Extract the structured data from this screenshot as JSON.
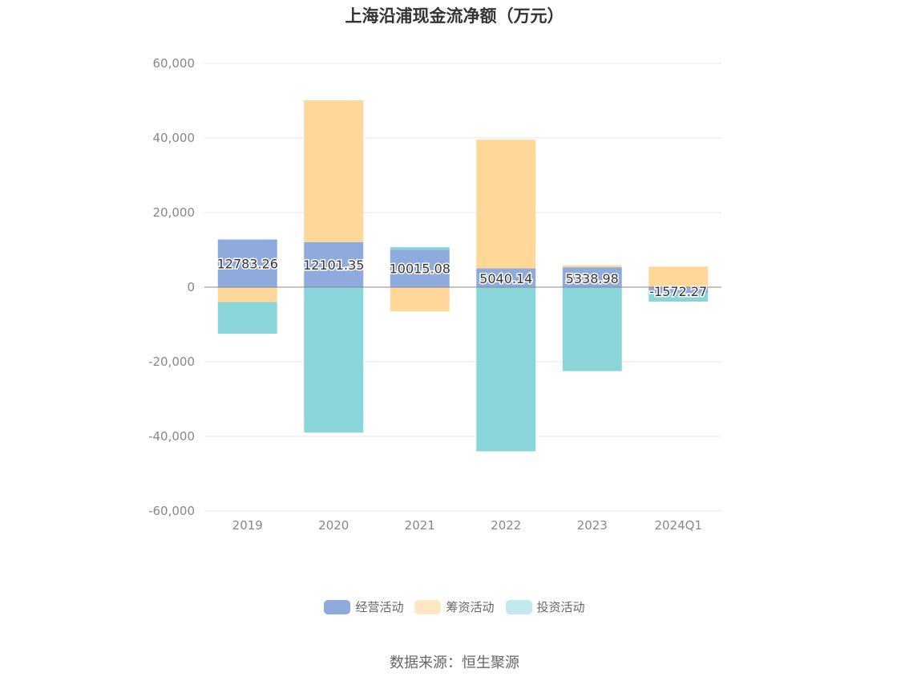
{
  "chart_data": {
    "type": "bar",
    "stacked": true,
    "title": "上海沿浦现金流净额（万元）",
    "categories": [
      "2019",
      "2020",
      "2021",
      "2022",
      "2023",
      "2024Q1"
    ],
    "series": [
      {
        "name": "经营活动",
        "color": "#8faadc",
        "values": [
          12783.26,
          12101.35,
          10015.08,
          5040.14,
          5338.98,
          -1572.27
        ]
      },
      {
        "name": "筹资活动",
        "color": "#ffd899",
        "values": [
          -4000,
          38000,
          -6500,
          34500,
          500,
          5500
        ]
      },
      {
        "name": "投资活动",
        "color": "#89d5d9",
        "values": [
          -8500,
          -39000,
          700,
          -44000,
          -22500,
          -2300
        ]
      }
    ],
    "legend_colors": [
      "#8faadc",
      "#ffe6c4",
      "#c2e9ec"
    ],
    "data_labels": [
      "12783.26",
      "12101.35",
      "10015.08",
      "5040.14",
      "5338.98",
      "-1572.27"
    ],
    "y_ticks": [
      60000,
      40000,
      20000,
      0,
      -20000,
      -40000,
      -60000
    ],
    "y_tick_labels": [
      "60,000",
      "40,000",
      "20,000",
      "0",
      "-20,000",
      "-40,000",
      "-60,000"
    ],
    "ylim": [
      -60000,
      60000
    ],
    "grid": true,
    "legend_position": "bottom"
  },
  "source": "数据来源：恒生聚源"
}
